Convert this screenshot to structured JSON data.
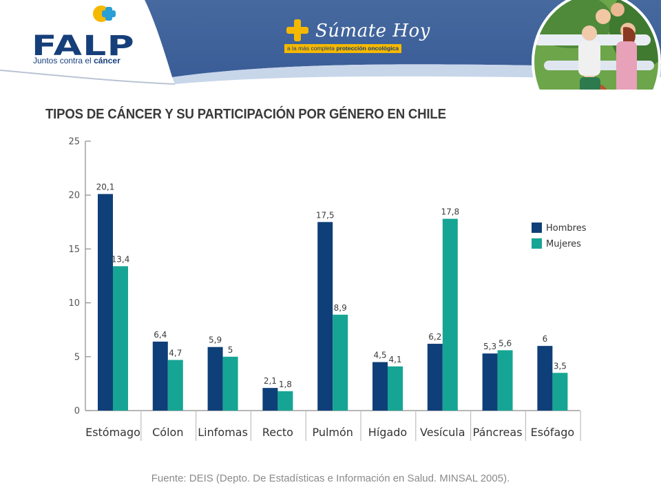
{
  "header": {
    "logo_text": "FALP",
    "tagline_prefix": "Juntos contra el",
    "tagline_bold": "cáncer",
    "campaign_title": "Súmate Hoy",
    "campaign_tag_prefix": "a la más completa",
    "campaign_tag_bold": "protección oncológica",
    "colors": {
      "navy": "#3d63a6",
      "brand": "#163f7a",
      "accent": "#f5b800",
      "teal": "#2a9fd6"
    }
  },
  "title": "TIPOS DE CÁNCER Y SU PARTICIPACIÓN POR GÉNERO EN CHILE",
  "source": "Fuente: DEIS (Depto. De Estadísticas e Información en Salud. MINSAL 2005).",
  "chart_data": {
    "type": "bar",
    "title": "TIPOS DE CÁNCER Y SU PARTICIPACIÓN POR GÉNERO EN CHILE",
    "xlabel": "",
    "ylabel": "",
    "ylim": [
      0,
      25
    ],
    "yticks": [
      "0",
      "5",
      "10",
      "15",
      "20",
      "25"
    ],
    "categories": [
      "Estómago",
      "Cólon",
      "Linfomas",
      "Recto",
      "Pulmón",
      "Hígado",
      "Vesícula",
      "Páncreas",
      "Esófago"
    ],
    "series": [
      {
        "name": "Hombres",
        "color": "#0e3f78",
        "values": [
          20.1,
          6.4,
          5.9,
          2.1,
          17.5,
          4.5,
          6.2,
          5.3,
          6
        ],
        "labels": [
          "20,1",
          "6,4",
          "5,9",
          "2,1",
          "17,5",
          "4,5",
          "6,2",
          "5,3",
          "6"
        ]
      },
      {
        "name": "Mujeres",
        "color": "#16a594",
        "values": [
          13.4,
          4.7,
          5,
          1.8,
          8.9,
          4.1,
          17.8,
          5.6,
          3.5
        ],
        "labels": [
          "13,4",
          "4,7",
          "5",
          "1,8",
          "8,9",
          "4,1",
          "17,8",
          "5,6",
          "3,5"
        ]
      }
    ],
    "legend": "right",
    "grid": false
  }
}
